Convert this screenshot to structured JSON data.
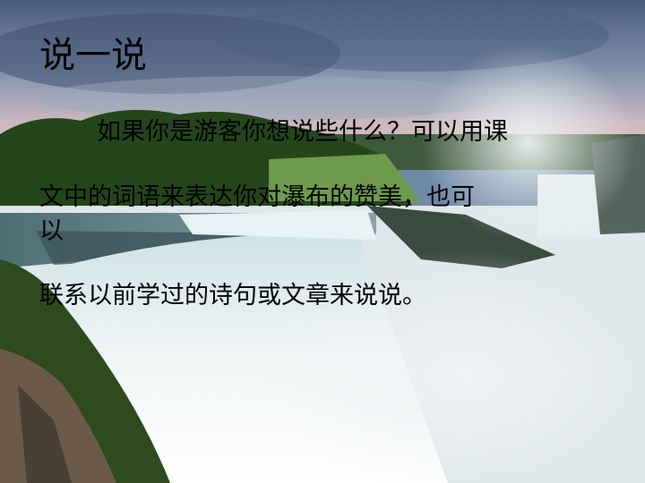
{
  "slide": {
    "title": "说一说",
    "body_lines": [
      "如果你是游客你想说些什么？可以用课",
      "文中的词语来表达你对瀑布的赞美，也可",
      "以",
      "联系以前学过的诗句或文章来说说。"
    ]
  },
  "colors": {
    "sky_top": "#4a5f80",
    "sky_pink": "#d9b4b8",
    "forest": "#2f5a22",
    "water": "#e8eef2",
    "mist": "#dde6ea"
  }
}
